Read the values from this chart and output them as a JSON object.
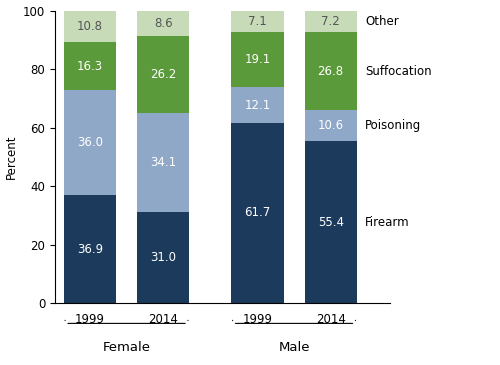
{
  "groups": [
    "Female",
    "Male"
  ],
  "years": [
    "1999",
    "2014"
  ],
  "methods": [
    "Firearm",
    "Poisoning",
    "Suffocation",
    "Other"
  ],
  "colors": {
    "Firearm": "#1b3a5c",
    "Poisoning": "#8fa8c8",
    "Suffocation": "#5a9a3a",
    "Other": "#c8dbb8"
  },
  "data": {
    "Female": {
      "1999": {
        "Firearm": 36.9,
        "Poisoning": 36.0,
        "Suffocation": 16.3,
        "Other": 10.8
      },
      "2014": {
        "Firearm": 31.0,
        "Poisoning": 34.1,
        "Suffocation": 26.2,
        "Other": 8.6
      }
    },
    "Male": {
      "1999": {
        "Firearm": 61.7,
        "Poisoning": 12.1,
        "Suffocation": 19.1,
        "Other": 7.1
      },
      "2014": {
        "Firearm": 55.4,
        "Poisoning": 10.6,
        "Suffocation": 26.8,
        "Other": 7.2
      }
    }
  },
  "ylabel": "Percent",
  "ylim": [
    0,
    100
  ],
  "yticks": [
    0,
    20,
    40,
    60,
    80,
    100
  ],
  "bar_width": 0.75,
  "positions": [
    0,
    1.05,
    2.4,
    3.45
  ],
  "group_centers": [
    0.525,
    2.925
  ],
  "text_color_light": "#ffffff",
  "text_color_dark": "#555555",
  "background_color": "#ffffff",
  "label_fontsize": 8.5,
  "axis_fontsize": 8.5,
  "group_label_fontsize": 9.5
}
